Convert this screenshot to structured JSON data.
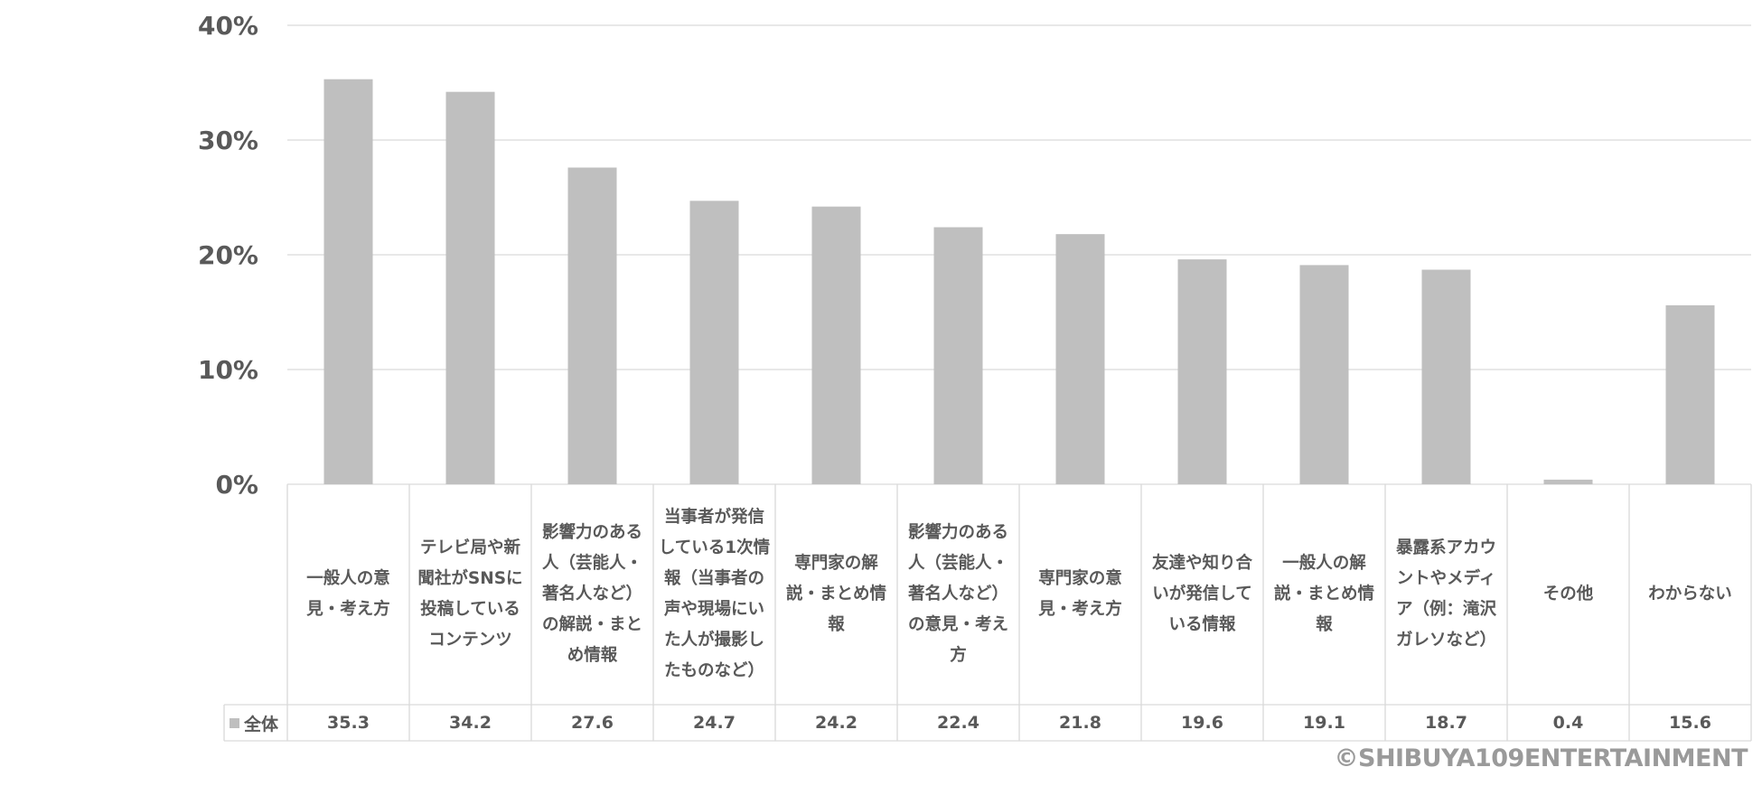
{
  "chart_data": {
    "type": "bar",
    "categories": [
      "一般人の意見・考え方",
      "テレビ局や新聞社がSNSに投稿しているコンテンツ",
      "影響力のある人（芸能人・著名人など）の解説・まとめ情報",
      "当事者が発信している1次情報（当事者の声や現場にいた人が撮影したものなど）",
      "専門家の解説・まとめ情報",
      "影響力のある人（芸能人・著名人など）の意見・考え方",
      "専門家の意見・考え方",
      "友達や知り合いが発信している情報",
      "一般人の解説・まとめ情報",
      "暴露系アカウントやメディア（例：滝沢ガレソなど）",
      "その他",
      "わからない"
    ],
    "series": [
      {
        "name": "全体",
        "values": [
          35.3,
          34.2,
          27.6,
          24.7,
          24.2,
          22.4,
          21.8,
          19.6,
          19.1,
          18.7,
          0.4,
          15.6
        ],
        "value_labels": [
          "35.3",
          "34.2",
          "27.6",
          "24.7",
          "24.2",
          "22.4",
          "21.8",
          "19.6",
          "19.1",
          "18.7",
          "0.4",
          "15.6"
        ]
      }
    ],
    "yticks": [
      "0%",
      "10%",
      "20%",
      "30%",
      "40%"
    ],
    "ylim": [
      0,
      40
    ],
    "grid": true,
    "legend": "data-table",
    "bar_color": "#bfbfbf"
  },
  "copyright": "©SHIBUYA109ENTERTAINMENT"
}
